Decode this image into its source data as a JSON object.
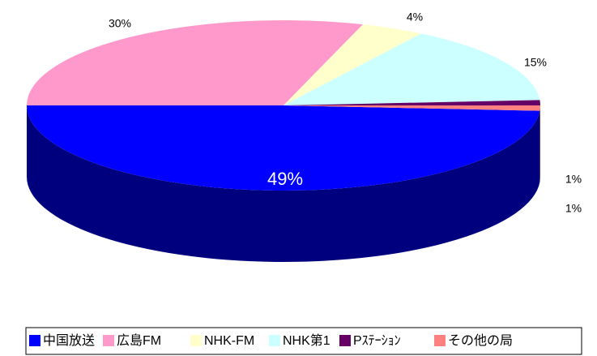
{
  "chart_data": {
    "type": "pie",
    "categories": [
      "中国放送",
      "広島FM",
      "NHK-FM",
      "NHK第1",
      "Pｽﾃｰｼｮﾝ",
      "その他の局"
    ],
    "values": [
      49,
      30,
      4,
      15,
      1,
      1
    ],
    "value_labels": [
      "49%",
      "30%",
      "4%",
      "15%",
      "1%",
      "1%"
    ],
    "colors": [
      "#0000ff",
      "#ff99cc",
      "#ffffcc",
      "#ccffff",
      "#660066",
      "#ff8080"
    ],
    "legend": "bottom"
  }
}
